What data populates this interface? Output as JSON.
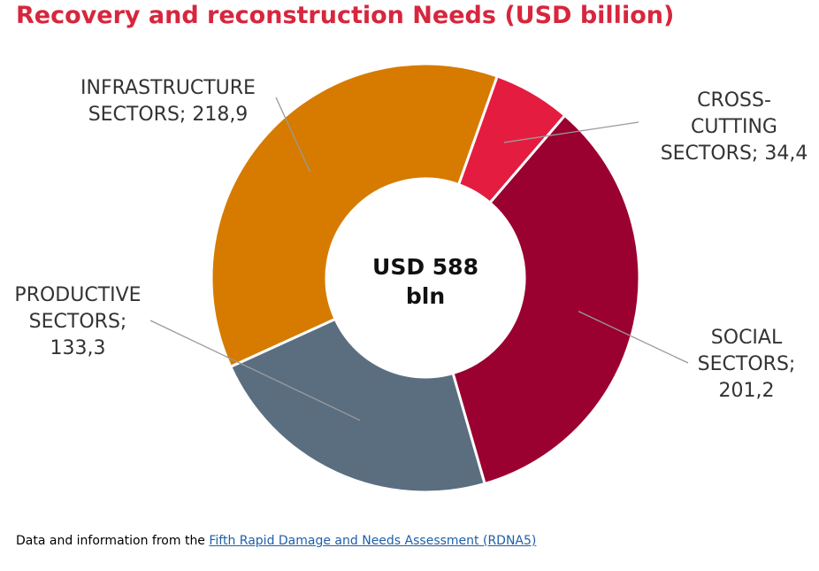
{
  "title": "Recovery and reconstruction Needs (USD billion)",
  "colors": {
    "title": "#d7263d",
    "infrastructure": "#d67b00",
    "cross_cutting": "#e41c40",
    "social": "#9a0030",
    "productive": "#5b6e80"
  },
  "chart_data": {
    "type": "pie",
    "style": "donut",
    "center_label": [
      "USD 588",
      "bln"
    ],
    "slices": [
      {
        "key": "cross_cutting",
        "label": [
          "CROSS-",
          "CUTTING",
          "SECTORS; 34,4"
        ],
        "value": 34.4
      },
      {
        "key": "social",
        "label": [
          "SOCIAL",
          "SECTORS;",
          "201,2"
        ],
        "value": 201.2
      },
      {
        "key": "productive",
        "label": [
          "PRODUCTIVE",
          "SECTORS;",
          "133,3"
        ],
        "value": 133.3
      },
      {
        "key": "infrastructure",
        "label": [
          "INFRASTRUCTURE",
          "SECTORS; 218,9"
        ],
        "value": 218.9
      }
    ]
  },
  "footer": {
    "prefix": "Data and information from the ",
    "link_text": "Fifth Rapid Damage and Needs Assessment (RDNA5)"
  }
}
